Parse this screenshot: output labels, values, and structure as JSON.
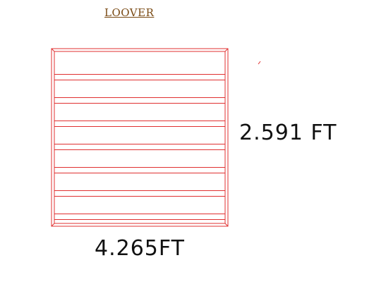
{
  "title": "LOOVER",
  "dimensions": {
    "height": "2.591 FT",
    "width": "4.265FT"
  },
  "louver": {
    "line_color": "#e03030",
    "slat_groups": [
      2,
      2,
      2,
      2,
      2,
      2,
      5
    ]
  },
  "colors": {
    "title": "#7a4a14",
    "dimension_text": "#111111",
    "background": "#ffffff"
  }
}
